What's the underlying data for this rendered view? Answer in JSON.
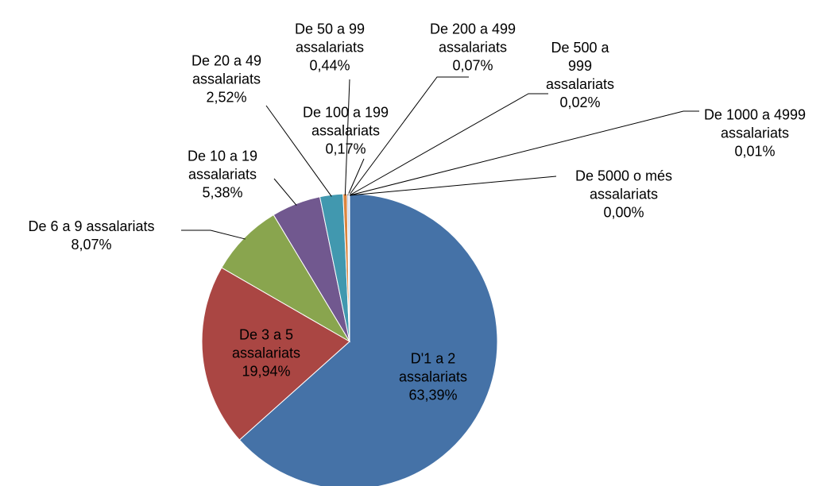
{
  "chart_data": {
    "type": "pie",
    "categories": [
      "D'1 a 2 assalariats",
      "De 3 a 5 assalariats",
      "De 6 a 9 assalariats",
      "De 10 a 19 assalariats",
      "De 20 a 49 assalariats",
      "De 50 a 99 assalariats",
      "De 100 a 199 assalariats",
      "De 200 a 499 assalariats",
      "De 500 a 999 assalariats",
      "De 1000 a 4999 assalariats",
      "De 5000 o més assalariats"
    ],
    "values": [
      63.39,
      19.94,
      8.07,
      5.38,
      2.52,
      0.44,
      0.17,
      0.07,
      0.02,
      0.01,
      0.0
    ],
    "value_labels": [
      "63,39%",
      "19,94%",
      "8,07%",
      "5,38%",
      "2,52%",
      "0,44%",
      "0,17%",
      "0,07%",
      "0,02%",
      "0,01%",
      "0,00%"
    ],
    "colors": [
      "#4572a7",
      "#aa4643",
      "#89a54e",
      "#71588f",
      "#4198af",
      "#db843d",
      "#93a9cf",
      "#d19392",
      "#b9cd96",
      "#a99bbd",
      "#92c5d6"
    ]
  }
}
